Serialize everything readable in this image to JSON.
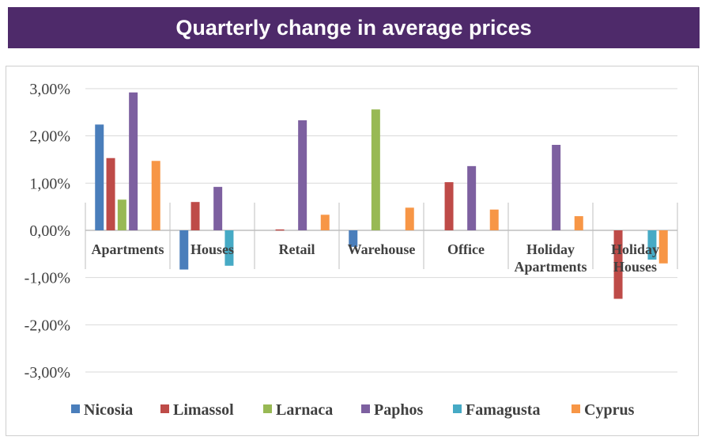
{
  "header": {
    "title": "Quarterly change in average prices"
  },
  "colors": {
    "banner_bg": "#4e2a6a",
    "Nicosia": "#4a7ebb",
    "Limassol": "#be4b48",
    "Larnaca": "#98b954",
    "Paphos": "#7d60a0",
    "Famagusta": "#46aac5",
    "Cyprus": "#f79646"
  },
  "chart_data": {
    "type": "bar",
    "title": "Quarterly change in average prices",
    "xlabel": "",
    "ylabel": "",
    "ylim": [
      -0.03,
      0.03
    ],
    "yticks": [
      0.03,
      0.02,
      0.01,
      0.0,
      -0.01,
      -0.02,
      -0.03
    ],
    "ytick_labels": [
      "3,00%",
      "2,00%",
      "1,00%",
      "0,00%",
      "-1,00%",
      "-2,00%",
      "-3,00%"
    ],
    "grid": true,
    "legend_position": "bottom",
    "categories": [
      "Apartments",
      "Houses",
      "Retail",
      "Warehouse",
      "Office",
      "Holiday Apartments",
      "Holiday Houses"
    ],
    "series": [
      {
        "name": "Nicosia",
        "values": [
          0.0224,
          -0.0083,
          null,
          -0.0035,
          null,
          null,
          null
        ]
      },
      {
        "name": "Limassol",
        "values": [
          0.0153,
          0.006,
          0.0002,
          null,
          0.0102,
          null,
          -0.0145
        ]
      },
      {
        "name": "Larnaca",
        "values": [
          0.0065,
          null,
          null,
          0.0256,
          null,
          null,
          null
        ]
      },
      {
        "name": "Paphos",
        "values": [
          0.0292,
          0.0092,
          0.0233,
          null,
          0.0136,
          0.0181,
          null
        ]
      },
      {
        "name": "Famagusta",
        "values": [
          null,
          -0.0075,
          null,
          null,
          null,
          null,
          -0.0062
        ]
      },
      {
        "name": "Cyprus",
        "values": [
          0.0147,
          null,
          0.0033,
          0.0048,
          0.0044,
          0.003,
          -0.007
        ]
      }
    ]
  }
}
